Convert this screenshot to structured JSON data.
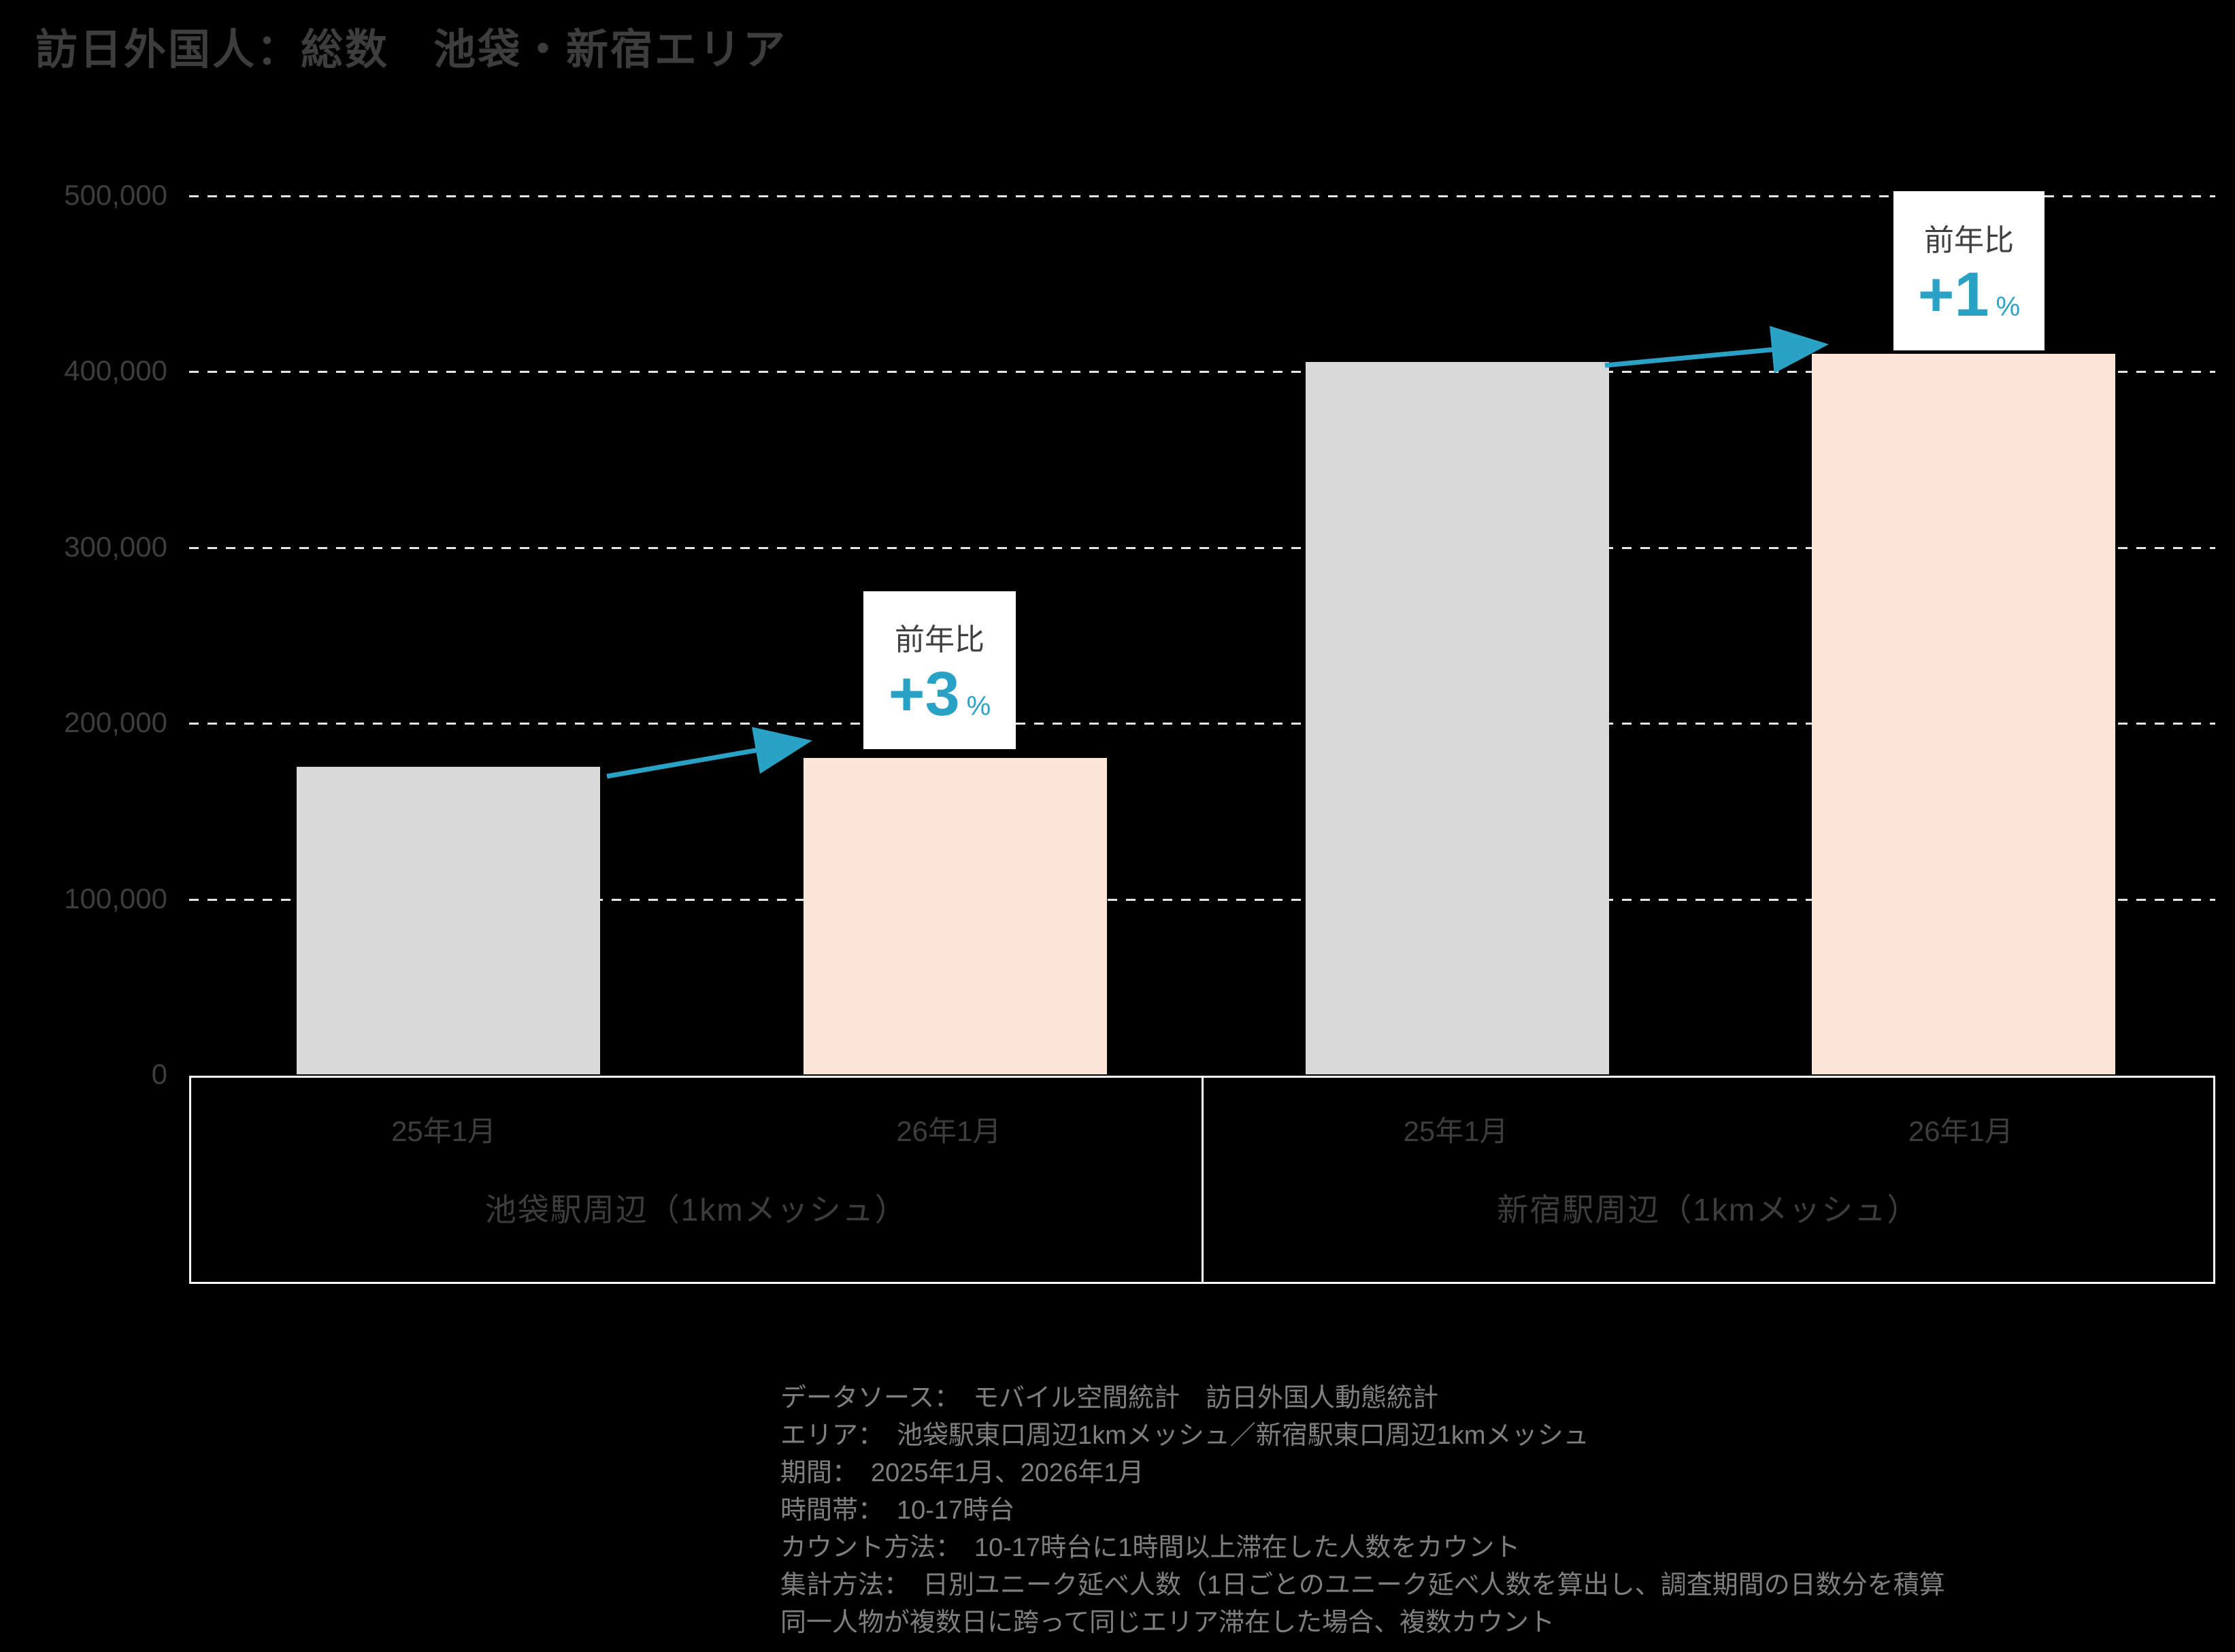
{
  "title": "訪日外国人：総数　池袋・新宿エリア",
  "colors": {
    "background": "#000000",
    "bar_prev": "#d9d9d9",
    "bar_current": "#fbe5d6",
    "accent_teal": "#2aa2c5",
    "grid": "#ffffff",
    "axis_text": "#3d3d3d",
    "footer_text": "#7f7f7f",
    "annotation_bg": "#ffffff",
    "annotation_text": "#404040"
  },
  "chart_data": {
    "type": "bar",
    "title": "訪日外国人：総数　池袋・新宿エリア",
    "xlabel": "",
    "ylabel": "",
    "ylim": [
      0,
      500000
    ],
    "grid": true,
    "ytick_labels": [
      "0",
      "100,000",
      "200,000",
      "300,000",
      "400,000",
      "500,000"
    ],
    "groups": [
      {
        "label": "池袋駅周辺（1kmメッシュ）",
        "categories": [
          "25年1月",
          "26年1月"
        ],
        "values": [
          175000,
          180000
        ],
        "yoy_label": "前年比",
        "yoy_value": "+3",
        "yoy_unit": "%"
      },
      {
        "label": "新宿駅周辺（1kmメッシュ）",
        "categories": [
          "25年1月",
          "26年1月"
        ],
        "values": [
          405000,
          410000
        ],
        "yoy_label": "前年比",
        "yoy_value": "+1",
        "yoy_unit": "%"
      }
    ]
  },
  "footer": {
    "lines": [
      "データソース：　モバイル空間統計　訪日外国人動態統計",
      "エリア：　池袋駅東口周辺1kmメッシュ／新宿駅東口周辺1kmメッシュ",
      "期間：　2025年1月、2026年1月",
      "時間帯：　10-17時台",
      "カウント方法：　10-17時台に1時間以上滞在した人数をカウント",
      "集計方法：　日別ユニーク延べ人数（1日ごとのユニーク延べ人数を算出し、調査期間の日数分を積算",
      "同一人物が複数日に跨って同じエリア滞在した場合、複数カウント"
    ]
  }
}
